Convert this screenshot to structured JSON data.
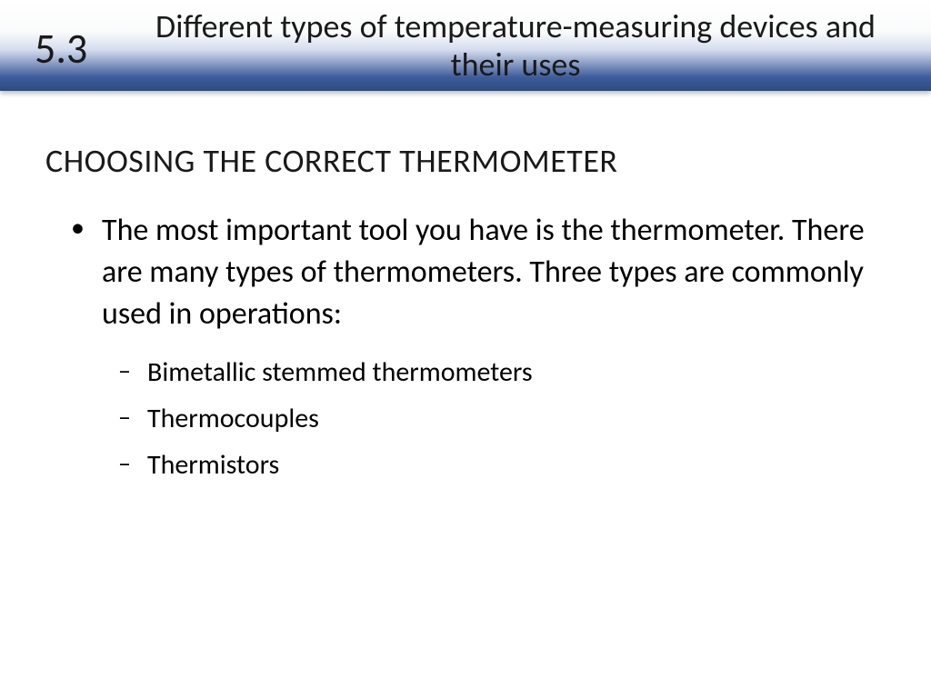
{
  "header": {
    "section_number": "5.3",
    "title": "Different types of temperature-measuring devices and their uses",
    "gradient_top": "#ffffff",
    "gradient_mid": "#d4dced",
    "gradient_bottom": "#2d4a80"
  },
  "content": {
    "subtitle": "CHOOSING THE CORRECT THERMOMETER",
    "main_bullet": "The most important tool you have is the thermometer. There are many types of thermometers. Three types are commonly used in operations:",
    "sub_bullets": [
      "Bimetallic stemmed thermometers",
      "Thermocouples",
      "Thermistors"
    ]
  },
  "styling": {
    "body_bg": "#ffffff",
    "text_color": "#1a1a1a",
    "section_number_fontsize": 46,
    "header_title_fontsize": 36,
    "subtitle_fontsize": 36,
    "main_bullet_fontsize": 34,
    "sub_bullet_fontsize": 30,
    "font_family": "Calibri"
  }
}
